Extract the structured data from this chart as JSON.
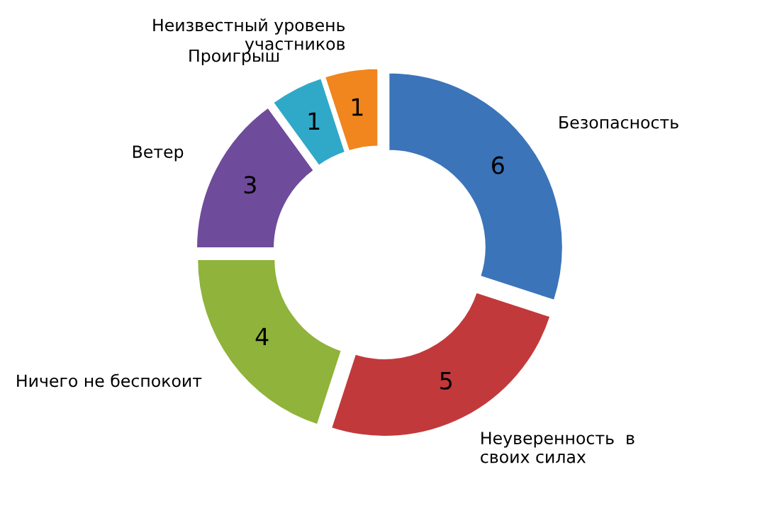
{
  "chart_data": {
    "type": "donut",
    "categories": [
      "Безопасность",
      "Неуверенность  в\nсвоих силах",
      "Ничего не беспокоит",
      "Ветер",
      "Проигрыш",
      "Неизвестный уровень\nучастников"
    ],
    "values": [
      6,
      5,
      4,
      3,
      1,
      1
    ],
    "colors": [
      "#3b74b9",
      "#c2393b",
      "#8fb33b",
      "#6f4b9b",
      "#30a9c9",
      "#f0861d"
    ],
    "data_labels": true,
    "legend": false
  }
}
